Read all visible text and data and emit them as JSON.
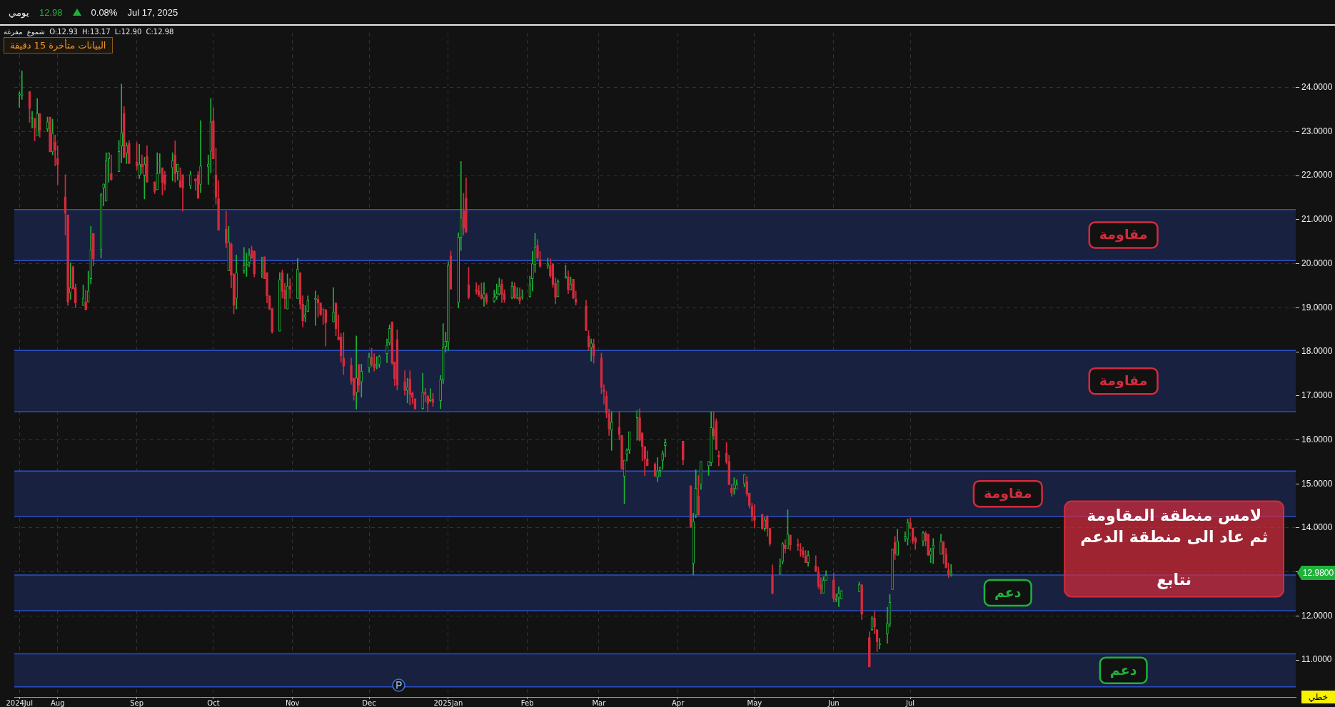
{
  "chart_data": {
    "type": "candlestick",
    "x": [
      "2024-07-17",
      "2024-07-18",
      "2024-07-21",
      "2024-07-22",
      "2024-07-23",
      "2024-07-24",
      "2024-07-25",
      "2024-07-28",
      "2024-07-29",
      "2024-07-30",
      "2024-07-31",
      "2024-08-01",
      "2024-08-04",
      "2024-08-05",
      "2024-08-06",
      "2024-08-07",
      "2024-08-08",
      "2024-08-11",
      "2024-08-12",
      "2024-08-13",
      "2024-08-14",
      "2024-08-15",
      "2024-08-18",
      "2024-08-19",
      "2024-08-20",
      "2024-08-21",
      "2024-08-22",
      "2024-08-25",
      "2024-08-26",
      "2024-08-27",
      "2024-08-28",
      "2024-08-29",
      "2024-09-01",
      "2024-09-02",
      "2024-09-03",
      "2024-09-04",
      "2024-09-05",
      "2024-09-08",
      "2024-09-09",
      "2024-09-10",
      "2024-09-11",
      "2024-09-12",
      "2024-09-15",
      "2024-09-16",
      "2024-09-17",
      "2024-09-18",
      "2024-09-19",
      "2024-09-22",
      "2024-09-24",
      "2024-09-25",
      "2024-09-26",
      "2024-09-29",
      "2024-09-30",
      "2024-10-01",
      "2024-10-02",
      "2024-10-03",
      "2024-10-06",
      "2024-10-07",
      "2024-10-08",
      "2024-10-09",
      "2024-10-10",
      "2024-10-13",
      "2024-10-14",
      "2024-10-15",
      "2024-10-16",
      "2024-10-17",
      "2024-10-20",
      "2024-10-21",
      "2024-10-22",
      "2024-10-23",
      "2024-10-24",
      "2024-10-27",
      "2024-10-28",
      "2024-10-29",
      "2024-10-30",
      "2024-10-31",
      "2024-11-03",
      "2024-11-04",
      "2024-11-05",
      "2024-11-06",
      "2024-11-07",
      "2024-11-10",
      "2024-11-11",
      "2024-11-12",
      "2024-11-13",
      "2024-11-14",
      "2024-11-17",
      "2024-11-18",
      "2024-11-19",
      "2024-11-20",
      "2024-11-21",
      "2024-11-24",
      "2024-11-25",
      "2024-11-26",
      "2024-11-27",
      "2024-11-28",
      "2024-12-01",
      "2024-12-02",
      "2024-12-03",
      "2024-12-04",
      "2024-12-05",
      "2024-12-08",
      "2024-12-09",
      "2024-12-10",
      "2024-12-11",
      "2024-12-12",
      "2024-12-15",
      "2024-12-16",
      "2024-12-17",
      "2024-12-18",
      "2024-12-19",
      "2024-12-22",
      "2024-12-23",
      "2024-12-24",
      "2024-12-25",
      "2024-12-26",
      "2024-12-29",
      "2024-12-30",
      "2024-12-31",
      "2025-01-01",
      "2025-01-02",
      "2025-01-05",
      "2025-01-06",
      "2025-01-07",
      "2025-01-08",
      "2025-01-09",
      "2025-01-12",
      "2025-01-13",
      "2025-01-14",
      "2025-01-15",
      "2025-01-16",
      "2025-01-19",
      "2025-01-20",
      "2025-01-21",
      "2025-01-22",
      "2025-01-23",
      "2025-01-26",
      "2025-01-27",
      "2025-01-28",
      "2025-01-29",
      "2025-01-30",
      "2025-02-02",
      "2025-02-03",
      "2025-02-04",
      "2025-02-05",
      "2025-02-06",
      "2025-02-09",
      "2025-02-10",
      "2025-02-11",
      "2025-02-12",
      "2025-02-13",
      "2025-02-16",
      "2025-02-17",
      "2025-02-18",
      "2025-02-19",
      "2025-02-20",
      "2025-02-24",
      "2025-02-25",
      "2025-02-26",
      "2025-02-27",
      "2025-03-02",
      "2025-03-03",
      "2025-03-04",
      "2025-03-05",
      "2025-03-06",
      "2025-03-09",
      "2025-03-10",
      "2025-03-11",
      "2025-03-12",
      "2025-03-13",
      "2025-03-16",
      "2025-03-17",
      "2025-03-18",
      "2025-03-19",
      "2025-03-20",
      "2025-03-23",
      "2025-03-24",
      "2025-03-25",
      "2025-03-26",
      "2025-03-27",
      "2025-04-03",
      "2025-04-06",
      "2025-04-07",
      "2025-04-08",
      "2025-04-09",
      "2025-04-10",
      "2025-04-13",
      "2025-04-14",
      "2025-04-15",
      "2025-04-16",
      "2025-04-17",
      "2025-04-20",
      "2025-04-21",
      "2025-04-22",
      "2025-04-23",
      "2025-04-24",
      "2025-04-27",
      "2025-04-28",
      "2025-04-29",
      "2025-04-30",
      "2025-05-01",
      "2025-05-04",
      "2025-05-05",
      "2025-05-06",
      "2025-05-07",
      "2025-05-08",
      "2025-05-11",
      "2025-05-12",
      "2025-05-13",
      "2025-05-14",
      "2025-05-15",
      "2025-05-18",
      "2025-05-19",
      "2025-05-20",
      "2025-05-21",
      "2025-05-22",
      "2025-05-25",
      "2025-05-26",
      "2025-05-27",
      "2025-05-28",
      "2025-05-29",
      "2025-06-01",
      "2025-06-02",
      "2025-06-03",
      "2025-06-04",
      "2025-06-11",
      "2025-06-12",
      "2025-06-15",
      "2025-06-16",
      "2025-06-17",
      "2025-06-18",
      "2025-06-19",
      "2025-06-22",
      "2025-06-23",
      "2025-06-24",
      "2025-06-25",
      "2025-06-26",
      "2025-06-29",
      "2025-06-30",
      "2025-07-01",
      "2025-07-02",
      "2025-07-03",
      "2025-07-06",
      "2025-07-07",
      "2025-07-08",
      "2025-07-09",
      "2025-07-10",
      "2025-07-13",
      "2025-07-14",
      "2025-07-15",
      "2025-07-16",
      "2025-07-17"
    ],
    "ohlc": [
      [
        23.83,
        23.9,
        23.55,
        23.84
      ],
      [
        23.82,
        24.38,
        23.73,
        23.87
      ],
      [
        23.91,
        23.91,
        23.21,
        23.53
      ],
      [
        23.3,
        23.46,
        23.08,
        23.3
      ],
      [
        23.3,
        23.3,
        22.79,
        23.08
      ],
      [
        22.91,
        23.75,
        22.91,
        23.41
      ],
      [
        23.41,
        23.41,
        22.87,
        23.03
      ],
      [
        23.06,
        23.33,
        23.0,
        23.22
      ],
      [
        23.33,
        23.33,
        22.54,
        22.54
      ],
      [
        22.54,
        23.28,
        22.47,
        22.96
      ],
      [
        22.76,
        22.92,
        22.22,
        22.58
      ],
      [
        22.39,
        22.68,
        21.8,
        22.25
      ],
      [
        21.52,
        22.02,
        20.65,
        21.14
      ],
      [
        21.11,
        21.11,
        19.05,
        19.13
      ],
      [
        19.34,
        20.02,
        19.19,
        19.46
      ],
      [
        19.93,
        19.95,
        19.43,
        19.43
      ],
      [
        19.46,
        19.54,
        19.0,
        19.11
      ],
      [
        19.05,
        19.52,
        19.05,
        19.22
      ],
      [
        19.13,
        19.4,
        18.95,
        18.95
      ],
      [
        19.13,
        19.83,
        19.13,
        19.38
      ],
      [
        19.66,
        20.85,
        19.54,
        20.32
      ],
      [
        20.69,
        20.69,
        19.95,
        20.11
      ],
      [
        20.32,
        21.6,
        20.13,
        21.57
      ],
      [
        21.72,
        21.81,
        21.31,
        21.81
      ],
      [
        21.42,
        22.52,
        21.42,
        22.34
      ],
      [
        22.38,
        22.52,
        21.85,
        22.52
      ],
      [
        22.05,
        22.47,
        21.89,
        21.91
      ],
      [
        22.09,
        22.8,
        22.09,
        22.55
      ],
      [
        22.67,
        24.08,
        22.29,
        22.97
      ],
      [
        23.41,
        23.57,
        22.41,
        22.41
      ],
      [
        22.51,
        22.75,
        22.27,
        22.68
      ],
      [
        22.73,
        22.8,
        22.27,
        22.27
      ],
      [
        22.31,
        22.75,
        22.13,
        22.22
      ],
      [
        22.01,
        22.71,
        21.93,
        22.26
      ],
      [
        22.26,
        22.47,
        22.05,
        22.2
      ],
      [
        22.01,
        22.42,
        21.47,
        22.26
      ],
      [
        22.44,
        22.68,
        21.85,
        21.85
      ],
      [
        21.86,
        21.86,
        21.59,
        21.64
      ],
      [
        21.68,
        22.52,
        21.68,
        22.05
      ],
      [
        22.26,
        22.5,
        22.05,
        22.27
      ],
      [
        22.18,
        22.18,
        21.56,
        21.84
      ],
      [
        22.02,
        22.1,
        21.67,
        21.8
      ],
      [
        22.18,
        22.52,
        21.88,
        22.34
      ],
      [
        22.47,
        22.79,
        21.85,
        22.04
      ],
      [
        22.09,
        22.26,
        21.9,
        22.26
      ],
      [
        21.89,
        22.18,
        21.72,
        21.75
      ],
      [
        22.02,
        22.02,
        21.19,
        21.72
      ],
      [
        21.77,
        22.1,
        21.7,
        22.02
      ],
      [
        21.93,
        21.93,
        21.67,
        21.88
      ],
      [
        22.02,
        22.1,
        21.48,
        21.48
      ],
      [
        21.8,
        23.25,
        21.61,
        22.22
      ],
      [
        22.2,
        22.47,
        21.8,
        22.26
      ],
      [
        22.55,
        23.75,
        22.06,
        23.22
      ],
      [
        23.25,
        23.54,
        22.38,
        22.38
      ],
      [
        22.02,
        22.63,
        21.35,
        21.51
      ],
      [
        21.48,
        21.89,
        20.76,
        20.76
      ],
      [
        20.79,
        21.19,
        20.36,
        20.47
      ],
      [
        19.84,
        20.85,
        19.84,
        20.5
      ],
      [
        20.45,
        20.48,
        19.45,
        19.74
      ],
      [
        19.77,
        19.77,
        18.86,
        19.05
      ],
      [
        19.21,
        20.2,
        18.97,
        19.8
      ],
      [
        19.84,
        20.37,
        19.78,
        19.96
      ],
      [
        19.96,
        20.24,
        19.71,
        19.99
      ],
      [
        20.03,
        20.34,
        19.93,
        20.2
      ],
      [
        20.31,
        20.4,
        20.12,
        20.12
      ],
      [
        20.29,
        20.29,
        19.7,
        19.77
      ],
      [
        19.8,
        20.15,
        19.68,
        19.82
      ],
      [
        20.16,
        20.16,
        19.66,
        19.66
      ],
      [
        19.8,
        19.8,
        19.11,
        19.27
      ],
      [
        19.27,
        19.27,
        18.96,
        18.96
      ],
      [
        18.98,
        18.98,
        18.42,
        18.45
      ],
      [
        18.47,
        19.8,
        18.47,
        19.64
      ],
      [
        19.8,
        19.86,
        19.22,
        19.37
      ],
      [
        19.4,
        19.56,
        18.98,
        19.2
      ],
      [
        18.97,
        19.77,
        18.97,
        19.49
      ],
      [
        19.49,
        19.66,
        19.21,
        19.42
      ],
      [
        19.21,
        20.12,
        19.21,
        19.88
      ],
      [
        19.8,
        19.8,
        18.97,
        19.08
      ],
      [
        19.08,
        19.27,
        18.56,
        18.7
      ],
      [
        18.79,
        19.05,
        18.68,
        18.84
      ],
      [
        18.91,
        19.27,
        18.91,
        19.17
      ],
      [
        19.19,
        19.38,
        18.6,
        19.21
      ],
      [
        19.2,
        19.28,
        18.79,
        19.11
      ],
      [
        19.11,
        19.11,
        18.82,
        18.85
      ],
      [
        18.97,
        18.97,
        18.62,
        18.96
      ],
      [
        18.96,
        18.96,
        18.13,
        18.66
      ],
      [
        18.68,
        19.46,
        18.68,
        18.9
      ],
      [
        19.11,
        19.11,
        18.36,
        18.52
      ],
      [
        18.34,
        18.84,
        18.27,
        18.27
      ],
      [
        18.34,
        18.42,
        17.76,
        17.9
      ],
      [
        17.86,
        18.44,
        17.48,
        17.67
      ],
      [
        17.69,
        17.86,
        17.26,
        17.33
      ],
      [
        17.4,
        17.4,
        16.9,
        17.01
      ],
      [
        17.07,
        18.36,
        16.7,
        17.41
      ],
      [
        17.7,
        17.72,
        17.09,
        17.24
      ],
      [
        17.32,
        17.72,
        16.97,
        17.56
      ],
      [
        17.64,
        17.97,
        17.53,
        17.88
      ],
      [
        17.88,
        18.08,
        17.67,
        17.72
      ],
      [
        17.73,
        17.96,
        17.56,
        17.64
      ],
      [
        17.69,
        17.89,
        17.61,
        17.7
      ],
      [
        17.72,
        17.92,
        17.64,
        17.89
      ],
      [
        17.96,
        18.29,
        17.75,
        18.15
      ],
      [
        18.2,
        18.61,
        18.15,
        18.53
      ],
      [
        18.68,
        18.68,
        17.71,
        17.74
      ],
      [
        17.77,
        17.77,
        17.23,
        17.39
      ],
      [
        18.28,
        18.5,
        17.13,
        17.24
      ],
      [
        17.32,
        17.57,
        17.01,
        17.12
      ],
      [
        17.13,
        17.4,
        16.84,
        17.2
      ],
      [
        17.38,
        17.57,
        16.79,
        17.03
      ],
      [
        17.06,
        17.09,
        16.82,
        16.96
      ],
      [
        16.93,
        16.94,
        16.7,
        16.7
      ],
      [
        16.71,
        17.51,
        16.7,
        17.08
      ],
      [
        17.08,
        17.17,
        16.86,
        17.03
      ],
      [
        17.0,
        17.01,
        16.65,
        16.83
      ],
      [
        16.89,
        17.16,
        16.86,
        16.93
      ],
      [
        16.93,
        17.06,
        16.76,
        16.85
      ],
      [
        16.89,
        17.46,
        16.71,
        17.37
      ],
      [
        17.36,
        18.64,
        17.27,
        18.1
      ],
      [
        18.12,
        18.45,
        17.99,
        18.24
      ],
      [
        18.22,
        20.05,
        18.03,
        19.97
      ],
      [
        20.18,
        20.29,
        19.42,
        19.42
      ],
      [
        19.12,
        20.7,
        19.0,
        20.6
      ],
      [
        20.6,
        22.32,
        20.3,
        21.05
      ],
      [
        21.2,
        21.6,
        20.65,
        20.8
      ],
      [
        21.49,
        21.95,
        20.7,
        20.72
      ],
      [
        19.52,
        19.92,
        19.2,
        19.24
      ],
      [
        19.41,
        19.57,
        19.31,
        19.37
      ],
      [
        19.38,
        19.51,
        19.25,
        19.29
      ],
      [
        19.3,
        19.56,
        19.19,
        19.21
      ],
      [
        19.22,
        19.57,
        19.03,
        19.32
      ],
      [
        19.29,
        19.33,
        19.08,
        19.13
      ],
      [
        19.15,
        19.4,
        19.12,
        19.24
      ],
      [
        19.25,
        19.54,
        19.19,
        19.32
      ],
      [
        19.31,
        19.67,
        19.29,
        19.49
      ],
      [
        19.54,
        19.64,
        19.12,
        19.3
      ],
      [
        19.32,
        19.41,
        19.12,
        19.19
      ],
      [
        19.22,
        19.59,
        19.2,
        19.49
      ],
      [
        19.49,
        19.57,
        19.2,
        19.22
      ],
      [
        19.24,
        19.46,
        19.2,
        19.29
      ],
      [
        19.24,
        19.45,
        19.09,
        19.16
      ],
      [
        19.24,
        19.41,
        19.19,
        19.25
      ],
      [
        19.25,
        19.72,
        19.24,
        19.52
      ],
      [
        19.66,
        20.28,
        19.38,
        20.0
      ],
      [
        19.98,
        20.69,
        19.8,
        20.37
      ],
      [
        20.41,
        20.55,
        20.06,
        20.13
      ],
      [
        20.1,
        20.28,
        19.91,
        19.94
      ],
      [
        19.96,
        20.13,
        19.89,
        20.0
      ],
      [
        19.96,
        20.12,
        19.68,
        19.72
      ],
      [
        20.0,
        20.0,
        19.46,
        19.53
      ],
      [
        19.56,
        19.68,
        19.09,
        19.24
      ],
      [
        19.25,
        19.64,
        19.25,
        19.6
      ],
      [
        19.67,
        19.97,
        19.67,
        19.71
      ],
      [
        19.7,
        19.84,
        19.32,
        19.41
      ],
      [
        19.41,
        19.7,
        19.4,
        19.54
      ],
      [
        19.65,
        19.65,
        19.2,
        19.22
      ],
      [
        19.2,
        19.38,
        19.06,
        19.12
      ],
      [
        19.04,
        19.17,
        18.48,
        18.48
      ],
      [
        18.36,
        18.48,
        18.03,
        18.12
      ],
      [
        18.09,
        18.29,
        17.79,
        18.2
      ],
      [
        18.17,
        18.29,
        17.74,
        17.9
      ],
      [
        17.86,
        17.97,
        17.05,
        17.19
      ],
      [
        17.14,
        17.25,
        16.81,
        17.1
      ],
      [
        16.99,
        17.1,
        16.5,
        16.6
      ],
      [
        16.6,
        16.7,
        16.1,
        16.25
      ],
      [
        16.22,
        16.64,
        15.76,
        16.4
      ],
      [
        16.29,
        16.64,
        16.0,
        16.12
      ],
      [
        16.1,
        16.1,
        15.33,
        15.33
      ],
      [
        15.17,
        15.54,
        14.55,
        15.54
      ],
      [
        15.67,
        15.8,
        15.52,
        15.77
      ],
      [
        15.77,
        16.18,
        15.69,
        16.18
      ],
      [
        16.5,
        16.66,
        15.99,
        16.66
      ],
      [
        16.5,
        16.71,
        15.97,
        15.99
      ],
      [
        16.16,
        16.16,
        15.52,
        15.85
      ],
      [
        15.85,
        15.85,
        15.19,
        15.57
      ],
      [
        15.57,
        15.75,
        15.41,
        15.41
      ],
      [
        15.45,
        15.48,
        15.17,
        15.17
      ],
      [
        15.15,
        15.6,
        15.05,
        15.3
      ],
      [
        15.3,
        15.38,
        15.16,
        15.38
      ],
      [
        15.53,
        15.75,
        15.33,
        15.69
      ],
      [
        15.87,
        16.02,
        15.61,
        15.94
      ],
      [
        15.97,
        15.97,
        15.43,
        15.54
      ],
      [
        14.96,
        14.96,
        14.01,
        14.01
      ],
      [
        13.19,
        14.33,
        12.93,
        14.15
      ],
      [
        14.29,
        15.32,
        14.23,
        14.9
      ],
      [
        14.72,
        15.19,
        14.29,
        14.29
      ],
      [
        14.99,
        15.51,
        14.87,
        15.51
      ],
      [
        15.41,
        15.51,
        15.19,
        15.51
      ],
      [
        15.48,
        16.64,
        15.41,
        16.28
      ],
      [
        16.26,
        16.64,
        16.01,
        16.09
      ],
      [
        16.42,
        16.48,
        15.77,
        15.78
      ],
      [
        15.65,
        15.75,
        15.41,
        15.61
      ],
      [
        15.7,
        15.94,
        15.45,
        15.49
      ],
      [
        15.51,
        15.65,
        14.98,
        14.98
      ],
      [
        14.9,
        14.99,
        14.72,
        14.8
      ],
      [
        14.89,
        15.14,
        14.76,
        15.0
      ],
      [
        14.88,
        15.09,
        14.88,
        14.98
      ],
      [
        15.0,
        15.21,
        14.93,
        15.21
      ],
      [
        15.06,
        15.17,
        14.72,
        14.77
      ],
      [
        14.79,
        14.79,
        14.45,
        14.5
      ],
      [
        14.49,
        14.56,
        14.15,
        14.26
      ],
      [
        14.26,
        14.53,
        14.0,
        14.17
      ],
      [
        14.31,
        14.31,
        13.96,
        13.99
      ],
      [
        13.99,
        14.24,
        13.93,
        14.18
      ],
      [
        14.26,
        14.28,
        13.81,
        13.99
      ],
      [
        13.99,
        13.99,
        13.59,
        13.64
      ],
      [
        12.92,
        13.16,
        12.5,
        12.51
      ],
      [
        12.95,
        13.3,
        12.95,
        13.14
      ],
      [
        13.24,
        13.67,
        13.18,
        13.64
      ],
      [
        13.61,
        13.73,
        13.43,
        13.53
      ],
      [
        13.53,
        14.41,
        13.53,
        13.86
      ],
      [
        13.84,
        13.84,
        13.49,
        13.61
      ],
      [
        13.62,
        13.75,
        13.49,
        13.59
      ],
      [
        13.51,
        13.65,
        13.35,
        13.48
      ],
      [
        13.48,
        13.56,
        13.33,
        13.38
      ],
      [
        13.37,
        13.49,
        13.21,
        13.21
      ],
      [
        13.21,
        13.48,
        13.13,
        13.38
      ],
      [
        13.14,
        13.37,
        13.01,
        13.01
      ],
      [
        13.0,
        13.11,
        12.63,
        12.68
      ],
      [
        12.71,
        12.87,
        12.5,
        12.6
      ],
      [
        12.52,
        12.89,
        12.52,
        12.81
      ],
      [
        12.81,
        13.03,
        12.81,
        12.92
      ],
      [
        12.82,
        12.98,
        12.32,
        12.39
      ],
      [
        12.37,
        12.5,
        12.32,
        12.4
      ],
      [
        12.42,
        12.66,
        12.21,
        12.52
      ],
      [
        12.39,
        12.58,
        12.39,
        12.57
      ],
      [
        12.55,
        12.77,
        12.55,
        12.71
      ],
      [
        12.71,
        12.71,
        11.92,
        12.04
      ],
      [
        11.51,
        11.64,
        10.84,
        10.84
      ],
      [
        11.69,
        11.99,
        11.67,
        11.94
      ],
      [
        11.96,
        12.1,
        11.59,
        11.75
      ],
      [
        11.69,
        11.69,
        11.19,
        11.41
      ],
      [
        11.35,
        11.49,
        11.25,
        11.36
      ],
      [
        11.59,
        12.2,
        11.38,
        11.83
      ],
      [
        11.81,
        12.49,
        11.75,
        12.31
      ],
      [
        12.6,
        13.52,
        12.6,
        13.52
      ],
      [
        13.67,
        13.81,
        13.28,
        13.4
      ],
      [
        13.38,
        13.97,
        13.38,
        13.7
      ],
      [
        13.75,
        13.91,
        13.69,
        13.8
      ],
      [
        13.75,
        14.2,
        13.61,
        14.12
      ],
      [
        14.12,
        14.23,
        13.99,
        13.99
      ],
      [
        14.0,
        14.0,
        13.64,
        13.7
      ],
      [
        13.77,
        13.8,
        13.51,
        13.67
      ],
      [
        13.7,
        13.92,
        13.59,
        13.89
      ],
      [
        13.89,
        13.92,
        13.59,
        13.7
      ],
      [
        13.86,
        13.86,
        13.37,
        13.38
      ],
      [
        13.38,
        13.54,
        13.21,
        13.48
      ],
      [
        13.54,
        13.76,
        13.19,
        13.6
      ],
      [
        13.4,
        13.86,
        13.4,
        13.69
      ],
      [
        13.69,
        13.69,
        13.19,
        13.4
      ],
      [
        13.4,
        13.54,
        13.09,
        13.09
      ],
      [
        13.05,
        13.2,
        12.87,
        12.95
      ],
      [
        12.93,
        13.17,
        12.9,
        12.98
      ]
    ],
    "colors": [
      "#1fb23a",
      "#1fb23a",
      "#d42b3d",
      "#1fb23a",
      "#d42b3d",
      "#1fb23a",
      "#d42b3d",
      "#1fb23a",
      "#d42b3d",
      "#1fb23a",
      "#d42b3d",
      "#d42b3d",
      "#d42b3d",
      "#d42b3d",
      "#1fb23a",
      "#d42b3d",
      "#d42b3d",
      "#1fb23a",
      "#d42b3d",
      "#1fb23a",
      "#1fb23a",
      "#d42b3d",
      "#1fb23a",
      "#1fb23a",
      "#1fb23a",
      "#1fb23a",
      "#d42b3d",
      "#1fb23a",
      "#1fb23a",
      "#d42b3d",
      "#1fb23a",
      "#d42b3d",
      "#d42b3d",
      "#1fb23a",
      "#d42b3d",
      "#1fb23a",
      "#d42b3d",
      "#d42b3d",
      "#1fb23a",
      "#1fb23a",
      "#d42b3d",
      "#d42b3d",
      "#1fb23a",
      "#d42b3d",
      "#1fb23a",
      "#d42b3d",
      "#d42b3d",
      "#1fb23a",
      "#d42b3d",
      "#d42b3d",
      "#1fb23a",
      "#1fb23a",
      "#1fb23a",
      "#d42b3d",
      "#d42b3d",
      "#d42b3d",
      "#d42b3d",
      "#1fb23a",
      "#d42b3d",
      "#d42b3d",
      "#1fb23a",
      "#1fb23a",
      "#1fb23a",
      "#1fb23a",
      "#d42b3d",
      "#d42b3d",
      "#1fb23a",
      "#d42b3d",
      "#d42b3d",
      "#d42b3d",
      "#d42b3d",
      "#1fb23a",
      "#d42b3d",
      "#d42b3d",
      "#1fb23a",
      "#d42b3d",
      "#1fb23a",
      "#d42b3d",
      "#d42b3d",
      "#1fb23a",
      "#1fb23a",
      "#1fb23a",
      "#d42b3d",
      "#d42b3d",
      "#d42b3d",
      "#d42b3d",
      "#1fb23a",
      "#d42b3d",
      "#d42b3d",
      "#d42b3d",
      "#d42b3d",
      "#d42b3d",
      "#d42b3d",
      "#1fb23a",
      "#d42b3d",
      "#1fb23a",
      "#1fb23a",
      "#d42b3d",
      "#d42b3d",
      "#1fb23a",
      "#1fb23a",
      "#1fb23a",
      "#1fb23a",
      "#d42b3d",
      "#d42b3d",
      "#d42b3d",
      "#d42b3d",
      "#1fb23a",
      "#d42b3d",
      "#d42b3d",
      "#d42b3d",
      "#1fb23a",
      "#d42b3d",
      "#d42b3d",
      "#1fb23a",
      "#d42b3d",
      "#1fb23a",
      "#1fb23a",
      "#1fb23a",
      "#1fb23a",
      "#d42b3d",
      "#1fb23a",
      "#1fb23a",
      "#d42b3d",
      "#d42b3d",
      "#d42b3d",
      "#d42b3d",
      "#d42b3d",
      "#d42b3d",
      "#1fb23a",
      "#d42b3d",
      "#1fb23a",
      "#1fb23a",
      "#1fb23a",
      "#d42b3d",
      "#d42b3d",
      "#1fb23a",
      "#d42b3d",
      "#1fb23a",
      "#d42b3d",
      "#1fb23a",
      "#1fb23a",
      "#1fb23a",
      "#1fb23a",
      "#d42b3d",
      "#d42b3d",
      "#1fb23a",
      "#d42b3d",
      "#d42b3d",
      "#d42b3d",
      "#1fb23a",
      "#1fb23a",
      "#d42b3d",
      "#1fb23a",
      "#d42b3d",
      "#d42b3d",
      "#d42b3d",
      "#d42b3d",
      "#1fb23a",
      "#d42b3d",
      "#d42b3d",
      "#d42b3d",
      "#d42b3d",
      "#d42b3d",
      "#1fb23a",
      "#d42b3d",
      "#d42b3d",
      "#1fb23a",
      "#1fb23a",
      "#1fb23a",
      "#1fb23a",
      "#d42b3d",
      "#d42b3d",
      "#d42b3d",
      "#d42b3d",
      "#d42b3d",
      "#1fb23a",
      "#1fb23a",
      "#1fb23a",
      "#1fb23a",
      "#d42b3d",
      "#d42b3d",
      "#1fb23a",
      "#1fb23a",
      "#d42b3d",
      "#1fb23a",
      "#1fb23a",
      "#1fb23a",
      "#d42b3d",
      "#d42b3d",
      "#d42b3d",
      "#d42b3d",
      "#d42b3d",
      "#d42b3d",
      "#1fb23a",
      "#1fb23a",
      "#1fb23a",
      "#d42b3d",
      "#d42b3d",
      "#d42b3d",
      "#d42b3d",
      "#d42b3d",
      "#1fb23a",
      "#d42b3d",
      "#d42b3d",
      "#d42b3d",
      "#1fb23a",
      "#1fb23a",
      "#d42b3d",
      "#1fb23a",
      "#d42b3d",
      "#d42b3d",
      "#d42b3d",
      "#d42b3d",
      "#d42b3d",
      "#1fb23a",
      "#d42b3d",
      "#d42b3d",
      "#d42b3d",
      "#1fb23a",
      "#1fb23a",
      "#d42b3d",
      "#1fb23a",
      "#1fb23a",
      "#1fb23a",
      "#1fb23a",
      "#d42b3d",
      "#d42b3d",
      "#1fb23a",
      "#d42b3d",
      "#d42b3d",
      "#1fb23a",
      "#1fb23a",
      "#1fb23a",
      "#1fb23a",
      "#d42b3d",
      "#1fb23a",
      "#1fb23a",
      "#1fb23a",
      "#d42b3d",
      "#d42b3d",
      "#d42b3d",
      "#1fb23a",
      "#d42b3d",
      "#d42b3d",
      "#1fb23a",
      "#1fb23a",
      "#1fb23a",
      "#d42b3d",
      "#d42b3d",
      "#d42b3d",
      "#1fb23a"
    ],
    "xlim": [
      "2024-07-15",
      "2025-11-29"
    ],
    "xticks": [
      {
        "value": "2024-07-17",
        "label": "2024Jul"
      },
      {
        "value": "2024-08",
        "label": "Aug"
      },
      {
        "value": "2024-09",
        "label": "Sep"
      },
      {
        "value": "2024-10",
        "label": "Oct"
      },
      {
        "value": "2024-11",
        "label": "Nov"
      },
      {
        "value": "2024-12",
        "label": "Dec"
      },
      {
        "value": "2025-01",
        "label": "2025Jan"
      },
      {
        "value": "2025-02",
        "label": "Feb"
      },
      {
        "value": "2025-03",
        "label": "Mar"
      },
      {
        "value": "2025-04",
        "label": "Apr"
      },
      {
        "value": "2025-05",
        "label": "May"
      },
      {
        "value": "2025-06",
        "label": "Jun"
      },
      {
        "value": "2025-07",
        "label": "Jul"
      }
    ],
    "ylim": [
      10.16,
      25.24
    ],
    "yticks": [
      {
        "value": 11,
        "label": "11.0000"
      },
      {
        "value": 12,
        "label": "12.0000"
      },
      {
        "value": 13,
        "label": null
      },
      {
        "value": 14,
        "label": "14.0000"
      },
      {
        "value": 15,
        "label": "15.0000"
      },
      {
        "value": 16,
        "label": "16.0000"
      },
      {
        "value": 17,
        "label": "17.0000"
      },
      {
        "value": 18,
        "label": "18.0000"
      },
      {
        "value": 19,
        "label": "19.0000"
      },
      {
        "value": 20,
        "label": "20.0000"
      },
      {
        "value": 21,
        "label": "21.0000"
      },
      {
        "value": 22,
        "label": "22.0000"
      },
      {
        "value": 23,
        "label": "23.0000"
      },
      {
        "value": 24,
        "label": "24.0000"
      }
    ],
    "grid": true,
    "bands": [
      {
        "axis": "y",
        "from": 20.07,
        "to": 21.23,
        "label": "مقاومة",
        "color": "#18213f"
      },
      {
        "axis": "y",
        "from": 16.64,
        "to": 18.03,
        "label": "مقاومة",
        "color": "#18213f"
      },
      {
        "axis": "y",
        "from": 14.26,
        "to": 15.29,
        "label": "مقاومة",
        "color": "#18213f"
      },
      {
        "axis": "y",
        "from": 12.12,
        "to": 12.93,
        "label": "دعم",
        "color": "#18213f"
      },
      {
        "axis": "y",
        "from": 10.39,
        "to": 11.14,
        "label": "دعم",
        "color": "#18213f"
      }
    ],
    "ref_lines": [
      {
        "axis": "y",
        "value": 21.23,
        "color": "#2b4fc7"
      },
      {
        "axis": "y",
        "value": 20.07,
        "color": "#2b4fc7"
      },
      {
        "axis": "y",
        "value": 18.03,
        "color": "#2b4fc7"
      },
      {
        "axis": "y",
        "value": 16.64,
        "color": "#2b4fc7"
      },
      {
        "axis": "y",
        "value": 15.29,
        "color": "#2b4fc7"
      },
      {
        "axis": "y",
        "value": 14.26,
        "color": "#2b4fc7"
      },
      {
        "axis": "y",
        "value": 12.93,
        "color": "#2b4fc7"
      },
      {
        "axis": "y",
        "value": 12.12,
        "color": "#2b4fc7"
      },
      {
        "axis": "y",
        "value": 11.14,
        "color": "#2b4fc7"
      },
      {
        "axis": "y",
        "value": 10.39,
        "color": "#2b4fc7"
      }
    ],
    "annotations": [
      "يومي",
      "12.98",
      "0.08%",
      "Jul 17, 2025",
      "شموع مفرغة O:12.93 H:13.17 L:12.90 C:12.98",
      "البيانات متأخرة 15 دقيقة",
      "لامس منطقة المقاومة\nثم عاد الى منطقة الدعم\n\nنتابع",
      "12.9800",
      "خطي"
    ]
  }
}
